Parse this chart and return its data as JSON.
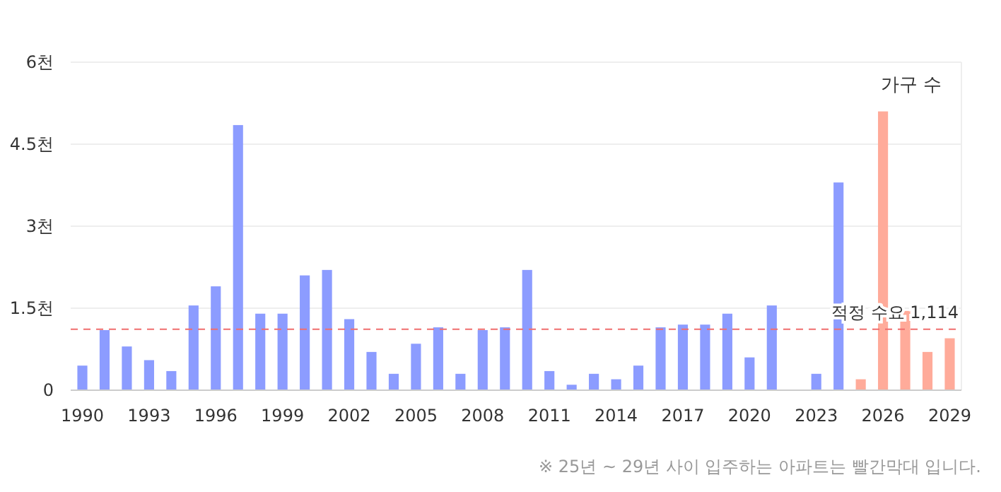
{
  "chart_data": {
    "type": "bar",
    "categories": [
      "1990",
      null,
      null,
      "1993",
      null,
      null,
      "1996",
      null,
      null,
      "1999",
      null,
      null,
      "2002",
      null,
      null,
      "2005",
      null,
      null,
      "2008",
      null,
      null,
      "2011",
      null,
      null,
      "2014",
      null,
      null,
      "2017",
      null,
      null,
      "2020",
      null,
      null,
      "2023",
      null,
      null,
      "2026",
      null,
      null,
      "2029"
    ],
    "series": [
      {
        "name": "가구 수",
        "colors": [
          "#8c9cff",
          "#8c9cff",
          "#8c9cff",
          "#8c9cff",
          "#8c9cff",
          "#8c9cff",
          "#8c9cff",
          "#8c9cff",
          "#8c9cff",
          "#8c9cff",
          "#8c9cff",
          "#8c9cff",
          "#8c9cff",
          "#8c9cff",
          "#8c9cff",
          "#8c9cff",
          "#8c9cff",
          "#8c9cff",
          "#8c9cff",
          "#8c9cff",
          "#8c9cff",
          "#8c9cff",
          "#8c9cff",
          "#8c9cff",
          "#8c9cff",
          "#8c9cff",
          "#8c9cff",
          "#8c9cff",
          "#8c9cff",
          "#8c9cff",
          "#8c9cff",
          "#8c9cff",
          "#8c9cff",
          "#8c9cff",
          "#8c9cff",
          "#ffab9a",
          "#ffab9a",
          "#ffab9a",
          "#ffab9a",
          "#ffab9a"
        ],
        "values": [
          0.45,
          1.1,
          0.8,
          0.55,
          0.35,
          1.55,
          1.9,
          4.85,
          1.4,
          1.4,
          2.1,
          2.2,
          1.3,
          0.7,
          0.3,
          0.85,
          1.15,
          0.3,
          1.1,
          1.15,
          2.2,
          0.35,
          0.1,
          0.3,
          0.2,
          0.45,
          1.15,
          1.2,
          1.2,
          1.4,
          0.6,
          1.55,
          0,
          0.3,
          3.8,
          0.2,
          5.1,
          1.45,
          0.7,
          0.95
        ]
      }
    ],
    "ylim": [
      0,
      6
    ],
    "yticks": [
      0,
      {
        "value": 1.5,
        "label": "1.5천"
      },
      {
        "value": 3,
        "label": "3천"
      },
      {
        "value": 4.5,
        "label": "4.5천"
      },
      {
        "value": 6,
        "label": "6천"
      }
    ],
    "grid": "y",
    "legend": "top right",
    "ref_lines": [
      {
        "axis": "y",
        "value": 1.114,
        "label": "적정 수요 1,114",
        "color": "#f06e6e",
        "line_style": "dashed"
      }
    ],
    "annotations": [
      "※ 25년 ~ 29년 사이 입주하는 아파트는 빨간막대 입니다."
    ]
  }
}
